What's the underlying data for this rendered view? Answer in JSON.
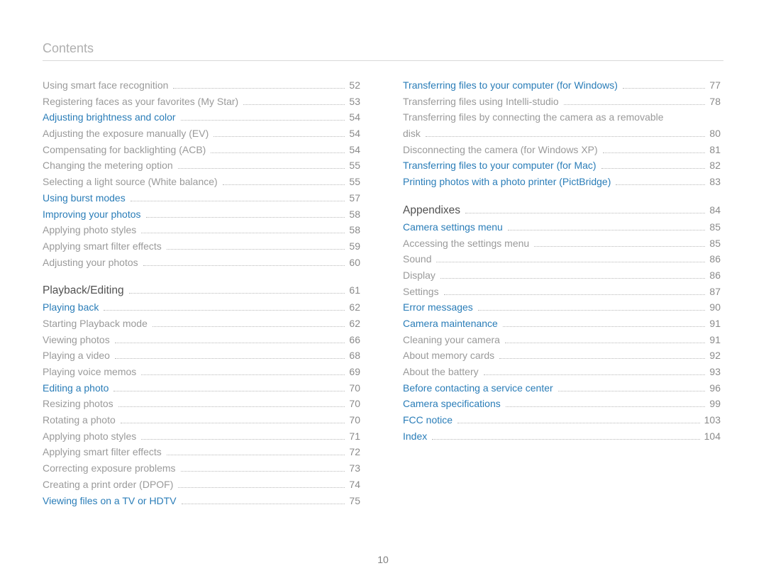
{
  "header": "Contents",
  "page_number": "10",
  "colors": {
    "normal": "#9a9a9a",
    "link": "#2a7db8",
    "section": "#515151",
    "page": "#8a8a8a",
    "header": "#b0b0b0",
    "rule": "#d8d8d8",
    "dots": "#b8b8b8",
    "background": "#ffffff"
  },
  "left": [
    {
      "style": "normal",
      "text": "Using smart face recognition",
      "page": "52"
    },
    {
      "style": "normal",
      "text": "Registering faces as your favorites (My Star)",
      "page": "53"
    },
    {
      "style": "link",
      "text": "Adjusting brightness and color",
      "page": "54"
    },
    {
      "style": "normal",
      "text": "Adjusting the exposure manually (EV)",
      "page": "54"
    },
    {
      "style": "normal",
      "text": "Compensating for backlighting (ACB)",
      "page": "54"
    },
    {
      "style": "normal",
      "text": "Changing the metering option",
      "page": "55"
    },
    {
      "style": "normal",
      "text": "Selecting a light source (White balance)",
      "page": "55"
    },
    {
      "style": "link",
      "text": "Using burst modes",
      "page": "57"
    },
    {
      "style": "link",
      "text": "Improving your photos",
      "page": "58"
    },
    {
      "style": "normal",
      "text": "Applying photo styles",
      "page": "58"
    },
    {
      "style": "normal",
      "text": "Applying smart filter effects",
      "page": "59"
    },
    {
      "style": "normal",
      "text": "Adjusting your photos",
      "page": "60"
    },
    {
      "gap": true
    },
    {
      "style": "section",
      "text": "Playback/Editing",
      "page": "61"
    },
    {
      "style": "link",
      "text": "Playing back",
      "page": "62"
    },
    {
      "style": "normal",
      "text": "Starting Playback mode",
      "page": "62"
    },
    {
      "style": "normal",
      "text": "Viewing photos",
      "page": "66"
    },
    {
      "style": "normal",
      "text": "Playing a video",
      "page": "68"
    },
    {
      "style": "normal",
      "text": "Playing voice memos",
      "page": "69"
    },
    {
      "style": "link",
      "text": "Editing a photo",
      "page": "70"
    },
    {
      "style": "normal",
      "text": "Resizing photos",
      "page": "70"
    },
    {
      "style": "normal",
      "text": "Rotating a photo",
      "page": "70"
    },
    {
      "style": "normal",
      "text": "Applying photo styles",
      "page": "71"
    },
    {
      "style": "normal",
      "text": "Applying smart filter effects",
      "page": "72"
    },
    {
      "style": "normal",
      "text": "Correcting exposure problems",
      "page": "73"
    },
    {
      "style": "normal",
      "text": "Creating a print order (DPOF)",
      "page": "74"
    },
    {
      "style": "link",
      "text": "Viewing files on a TV or HDTV",
      "page": "75"
    }
  ],
  "right": [
    {
      "style": "link",
      "text": "Transferring files to your computer (for Windows)",
      "page": "77"
    },
    {
      "style": "normal",
      "text": "Transferring files using Intelli-studio",
      "page": "78"
    },
    {
      "style": "normal",
      "text": "Transferring files by connecting the camera as a removable",
      "cont": true
    },
    {
      "style": "normal",
      "text": "disk",
      "page": "80"
    },
    {
      "style": "normal",
      "text": "Disconnecting the camera (for Windows XP)",
      "page": "81"
    },
    {
      "style": "link",
      "text": "Transferring files to your computer (for Mac)",
      "page": "82"
    },
    {
      "style": "link",
      "text": "Printing photos with a photo printer (PictBridge)",
      "page": "83"
    },
    {
      "gap": true
    },
    {
      "style": "section",
      "text": "Appendixes",
      "page": "84"
    },
    {
      "style": "link",
      "text": "Camera settings menu",
      "page": "85"
    },
    {
      "style": "normal",
      "text": "Accessing the settings menu",
      "page": "85"
    },
    {
      "style": "normal",
      "text": "Sound",
      "page": "86"
    },
    {
      "style": "normal",
      "text": "Display",
      "page": "86"
    },
    {
      "style": "normal",
      "text": "Settings",
      "page": "87"
    },
    {
      "style": "link",
      "text": "Error messages",
      "page": "90"
    },
    {
      "style": "link",
      "text": "Camera maintenance",
      "page": "91"
    },
    {
      "style": "normal",
      "text": "Cleaning your camera",
      "page": "91"
    },
    {
      "style": "normal",
      "text": "About memory cards",
      "page": "92"
    },
    {
      "style": "normal",
      "text": "About the battery",
      "page": "93"
    },
    {
      "style": "link",
      "text": "Before contacting a service center",
      "page": "96"
    },
    {
      "style": "link",
      "text": "Camera specifications",
      "page": "99"
    },
    {
      "style": "link",
      "text": "FCC notice",
      "page": "103"
    },
    {
      "style": "link",
      "text": "Index",
      "page": "104"
    }
  ]
}
